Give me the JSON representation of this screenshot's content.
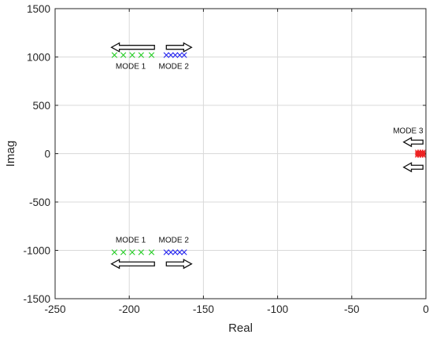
{
  "chart_data": {
    "type": "scatter",
    "title": "",
    "xlabel": "Real",
    "ylabel": "Imag",
    "xlim": [
      -250,
      0
    ],
    "ylim": [
      -1500,
      1500
    ],
    "xticks": [
      -250,
      -200,
      -150,
      -100,
      -50,
      0
    ],
    "xtick_labels": [
      "-250",
      "-200",
      "-150",
      "-100",
      "-50",
      "0"
    ],
    "yticks": [
      -1500,
      -1000,
      -500,
      0,
      500,
      1000,
      1500
    ],
    "ytick_labels": [
      "-1500",
      "-1000",
      "-500",
      "0",
      "500",
      "1000",
      "1500"
    ],
    "grid": true,
    "series": [
      {
        "marker": "x",
        "color": "#22cc22",
        "points": [
          [
            -210,
            1020
          ],
          [
            -204,
            1020
          ],
          [
            -198,
            1020
          ],
          [
            -192,
            1020
          ],
          [
            -185,
            1020
          ],
          [
            -210,
            -1020
          ],
          [
            -204,
            -1020
          ],
          [
            -198,
            -1020
          ],
          [
            -192,
            -1020
          ],
          [
            -185,
            -1020
          ]
        ]
      },
      {
        "marker": "x",
        "color": "#2222ee",
        "points": [
          [
            -175,
            1020
          ],
          [
            -172,
            1020
          ],
          [
            -169,
            1020
          ],
          [
            -166,
            1020
          ],
          [
            -163,
            1020
          ],
          [
            -175,
            -1020
          ],
          [
            -172,
            -1020
          ],
          [
            -169,
            -1020
          ],
          [
            -166,
            -1020
          ],
          [
            -163,
            -1020
          ]
        ]
      },
      {
        "marker": "x",
        "color": "#ee2222",
        "points": [
          [
            -6,
            22
          ],
          [
            -4.5,
            22
          ],
          [
            -3,
            22
          ],
          [
            -1.5,
            22
          ],
          [
            -6,
            8
          ],
          [
            -4.5,
            8
          ],
          [
            -3,
            8
          ],
          [
            -1.5,
            8
          ],
          [
            -6,
            -8
          ],
          [
            -4.5,
            -8
          ],
          [
            -3,
            -8
          ],
          [
            -1.5,
            -8
          ],
          [
            -6,
            -22
          ],
          [
            -4.5,
            -22
          ],
          [
            -3,
            -22
          ],
          [
            -1.5,
            -22
          ]
        ]
      }
    ],
    "annotations": [
      {
        "text": "MODE 1",
        "x": -199,
        "y": 880
      },
      {
        "text": "MODE 2",
        "x": -170,
        "y": 880
      },
      {
        "text": "MODE 1",
        "x": -199,
        "y": -920
      },
      {
        "text": "MODE 2",
        "x": -170,
        "y": -920
      },
      {
        "text": "MODE 3",
        "x": -12,
        "y": 210
      }
    ],
    "arrows": [
      {
        "direction": "left",
        "x_from": -183,
        "x_to": -212,
        "y": 1100
      },
      {
        "direction": "right",
        "x_from": -175,
        "x_to": -158,
        "y": 1100
      },
      {
        "direction": "left",
        "x_from": -183,
        "x_to": -212,
        "y": -1140
      },
      {
        "direction": "right",
        "x_from": -175,
        "x_to": -158,
        "y": -1140
      },
      {
        "direction": "left",
        "x_from": -2,
        "x_to": -15,
        "y": 120
      },
      {
        "direction": "left",
        "x_from": -2,
        "x_to": -15,
        "y": -140
      }
    ]
  }
}
